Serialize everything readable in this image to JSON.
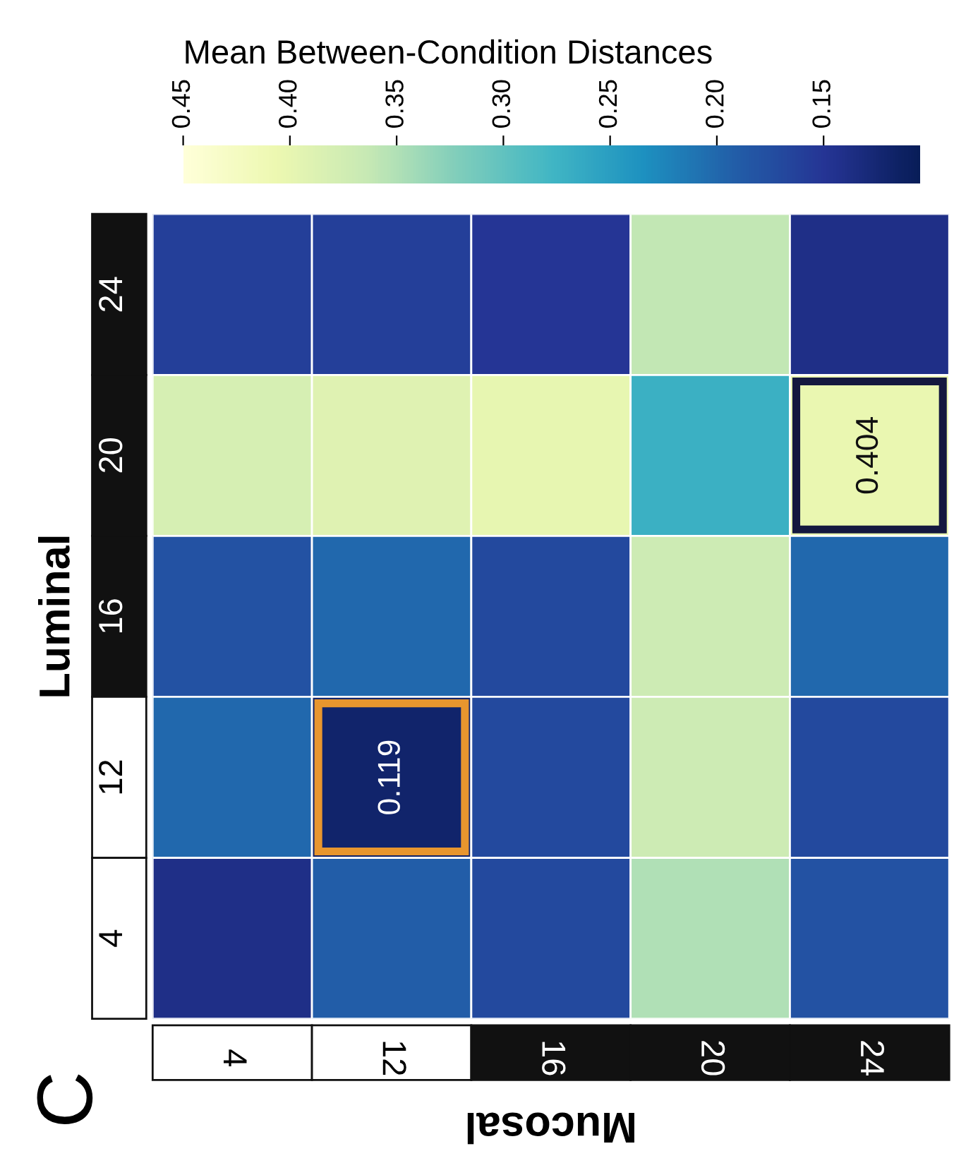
{
  "chart_data": {
    "type": "heatmap",
    "clabel": "Mean Between-Condition Distances",
    "xlabel": "Mucosal",
    "ylabel": "Luminal",
    "categories": [
      "4",
      "12",
      "16",
      "20",
      "24"
    ],
    "y_categories": [
      "24",
      "20",
      "16",
      "12",
      "4"
    ],
    "cells": [
      [
        0.16,
        0.16,
        0.15,
        0.36,
        0.14
      ],
      [
        0.38,
        0.39,
        0.4,
        0.27,
        0.404
      ],
      [
        0.18,
        0.2,
        0.17,
        0.37,
        0.2
      ],
      [
        0.2,
        0.119,
        0.17,
        0.37,
        0.17
      ],
      [
        0.14,
        0.19,
        0.17,
        0.35,
        0.18
      ]
    ],
    "cell_labels": [
      [
        null,
        null,
        null,
        null,
        null
      ],
      [
        null,
        null,
        null,
        null,
        "0.404"
      ],
      [
        null,
        null,
        null,
        null,
        null
      ],
      [
        null,
        "0.119",
        null,
        null,
        null
      ],
      [
        null,
        null,
        null,
        null,
        null
      ]
    ],
    "clim": [
      0.45,
      0.105
    ],
    "cticks": [
      {
        "value": 0.45,
        "label": "0.45"
      },
      {
        "value": 0.4,
        "label": "0.40"
      },
      {
        "value": 0.35,
        "label": "0.35"
      },
      {
        "value": 0.3,
        "label": "0.30"
      },
      {
        "value": 0.25,
        "label": "0.25"
      },
      {
        "value": 0.2,
        "label": "0.20"
      },
      {
        "value": 0.15,
        "label": "0.15"
      }
    ],
    "annotations": [
      "C"
    ]
  }
}
